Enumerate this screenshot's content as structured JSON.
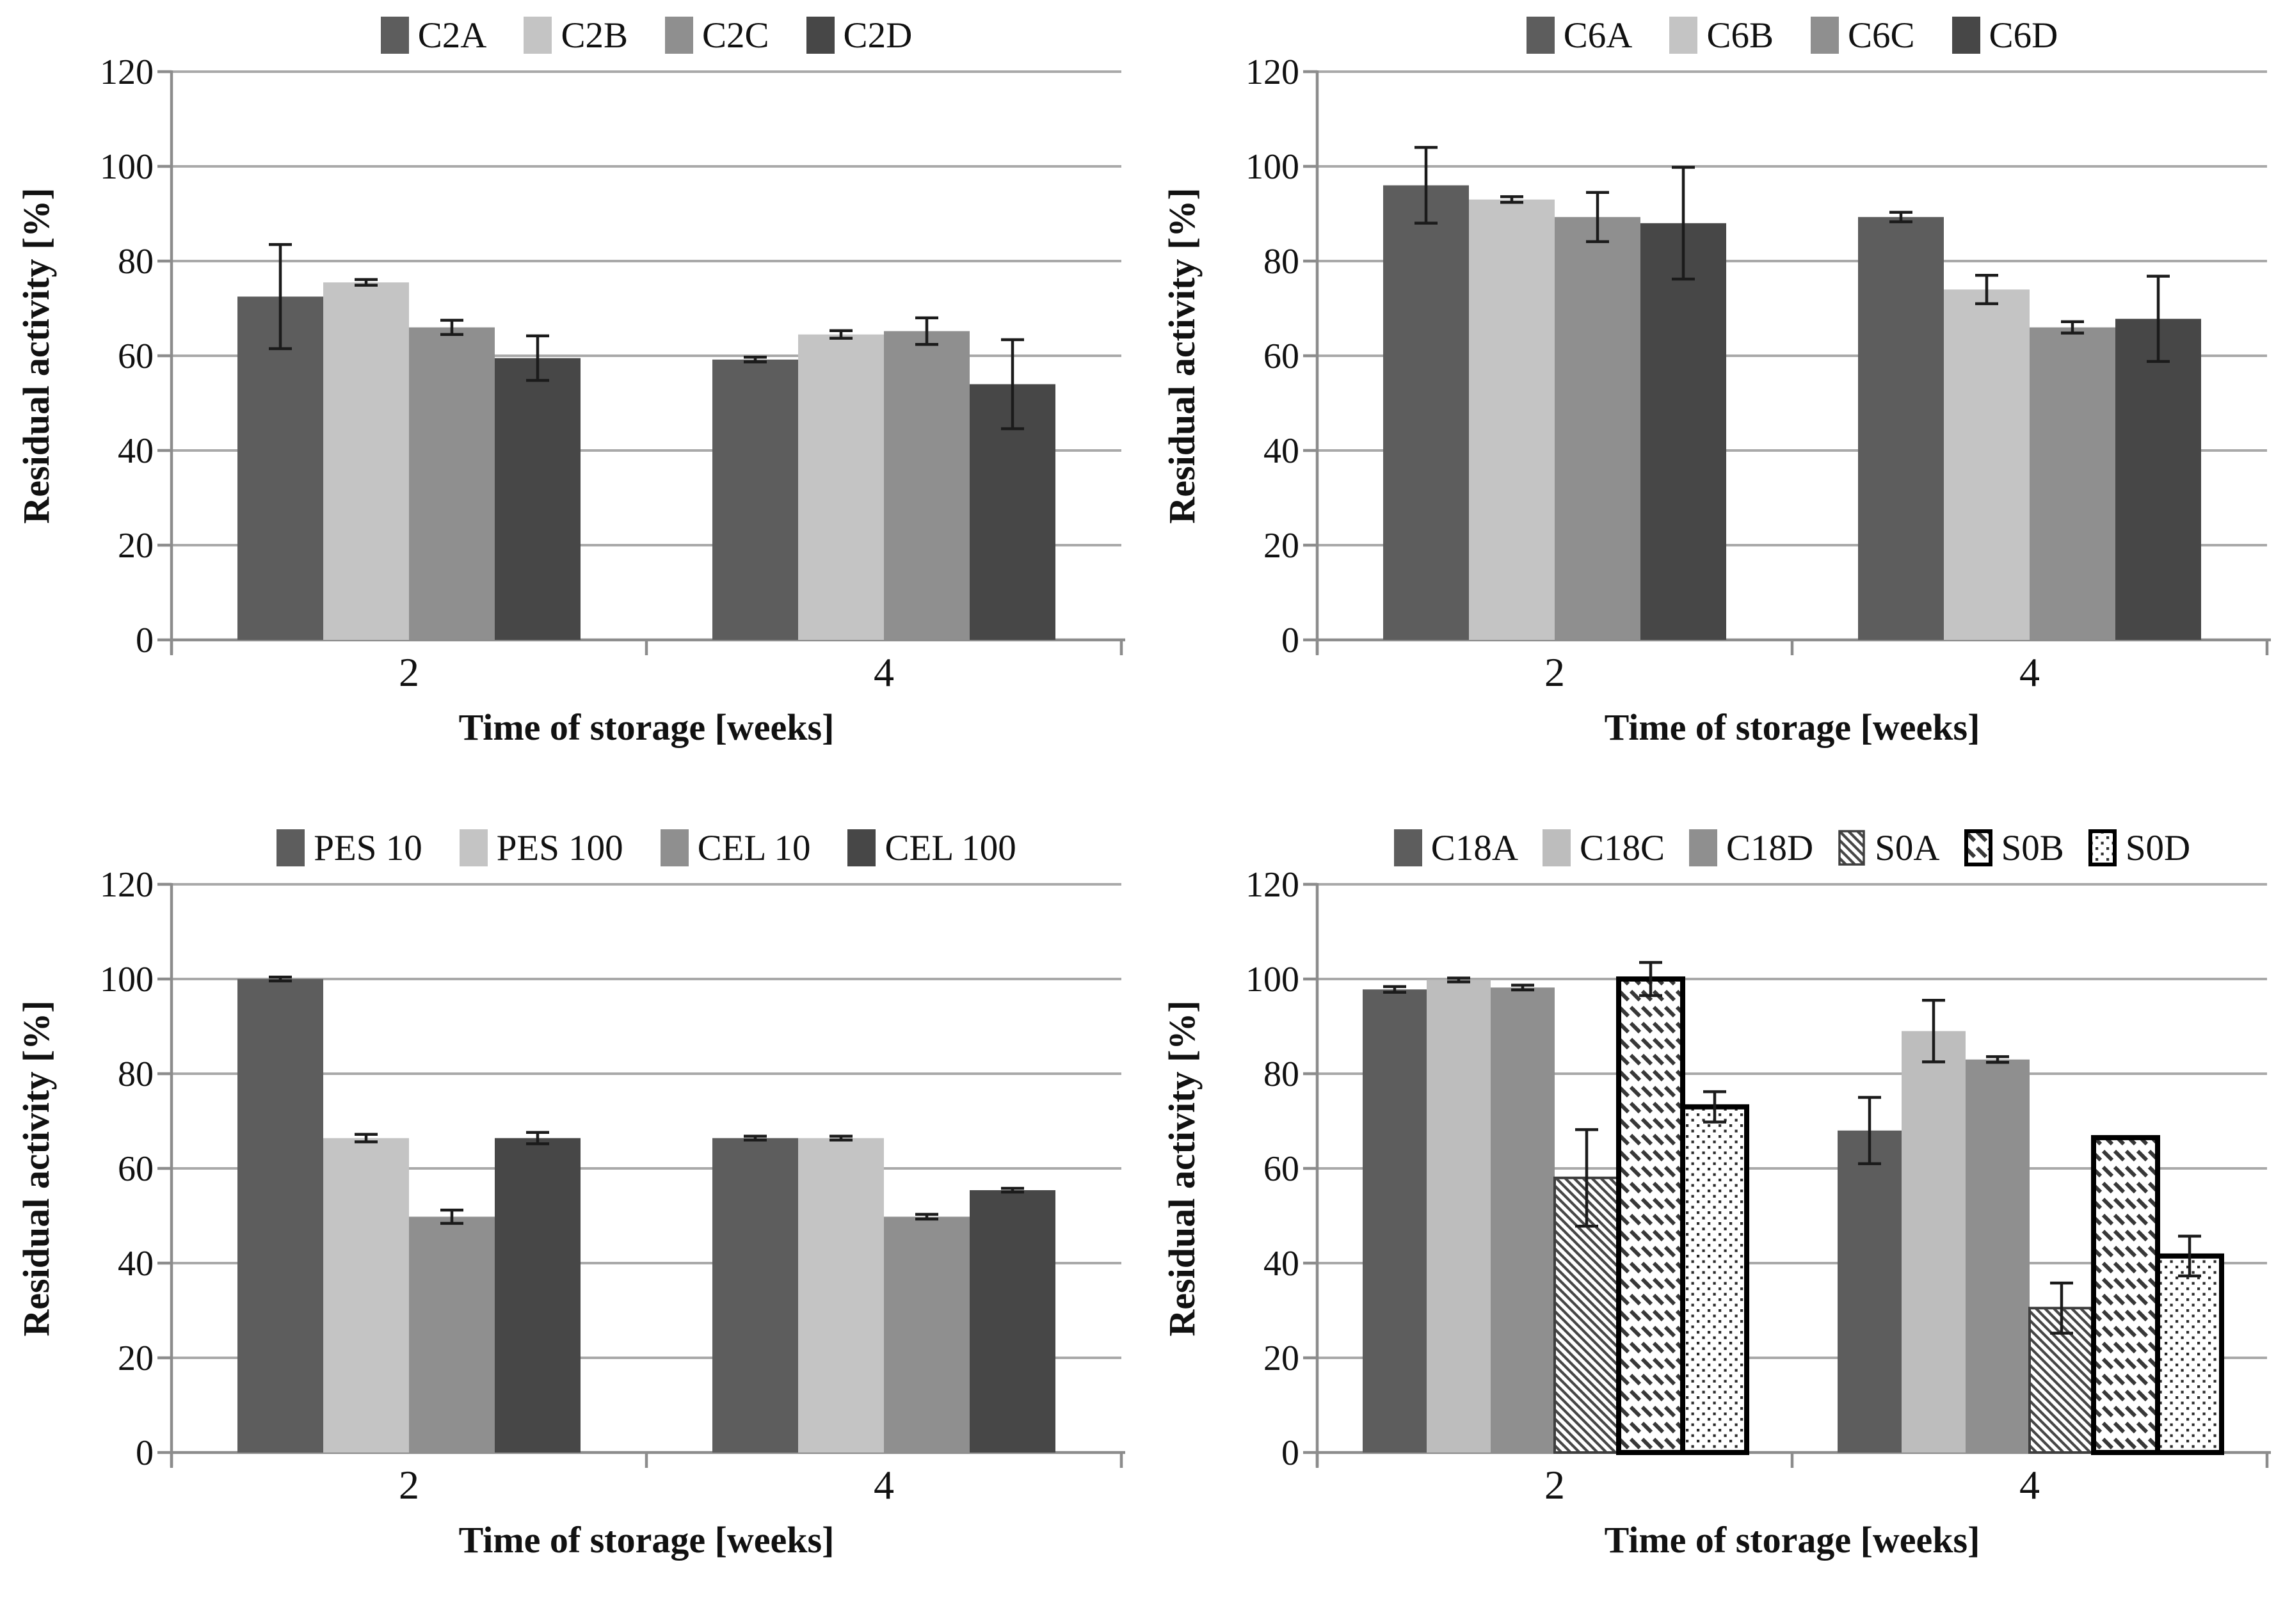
{
  "page": {
    "background": "#ffffff",
    "text_color": "#111111",
    "gridline_color": "#a9a9a9",
    "axis_color": "#8c8c8c",
    "error_bar_color": "#1b1b1b"
  },
  "shared_axes": {
    "ylabel": "Residual activity [%]",
    "xlabel": "Time of storage [weeks]",
    "categories": [
      "2",
      "4"
    ],
    "ylim": [
      0,
      120
    ],
    "ytick_step": 20,
    "yticks": [
      "0",
      "20",
      "40",
      "60",
      "80",
      "100",
      "120"
    ],
    "grid": "on",
    "legend_position": "top"
  },
  "chart_data": [
    {
      "type": "bar",
      "title": "",
      "position": "top-left",
      "categories": [
        "2",
        "4"
      ],
      "xlabel": "Time of storage [weeks]",
      "ylabel": "Residual activity [%]",
      "ylim": [
        0,
        120
      ],
      "ytick_step": 20,
      "series": [
        {
          "name": "C2A",
          "fill": "#5d5d5d",
          "pattern": null,
          "values": [
            72.5,
            59.2
          ],
          "errors": [
            11.0,
            0.5
          ]
        },
        {
          "name": "C2B",
          "fill": "#c4c4c4",
          "pattern": null,
          "values": [
            75.5,
            64.5
          ],
          "errors": [
            0.6,
            0.8
          ]
        },
        {
          "name": "C2C",
          "fill": "#8f8f8f",
          "pattern": null,
          "values": [
            66.0,
            65.2
          ],
          "errors": [
            1.5,
            2.8
          ]
        },
        {
          "name": "C2D",
          "fill": "#474747",
          "pattern": null,
          "values": [
            59.5,
            54.0
          ],
          "errors": [
            4.7,
            9.4
          ]
        }
      ]
    },
    {
      "type": "bar",
      "title": "",
      "position": "top-right",
      "categories": [
        "2",
        "4"
      ],
      "xlabel": "Time of storage [weeks]",
      "ylabel": "Residual activity [%]",
      "ylim": [
        0,
        120
      ],
      "ytick_step": 20,
      "series": [
        {
          "name": "C6A",
          "fill": "#5d5d5d",
          "pattern": null,
          "values": [
            96.0,
            89.3
          ],
          "errors": [
            8.0,
            1.0
          ]
        },
        {
          "name": "C6B",
          "fill": "#c4c4c4",
          "pattern": null,
          "values": [
            93.0,
            74.0
          ],
          "errors": [
            0.6,
            3.0
          ]
        },
        {
          "name": "C6C",
          "fill": "#8f8f8f",
          "pattern": null,
          "values": [
            89.3,
            66.0
          ],
          "errors": [
            5.2,
            1.2
          ]
        },
        {
          "name": "C6D",
          "fill": "#474747",
          "pattern": null,
          "values": [
            88.0,
            67.8
          ],
          "errors": [
            11.8,
            9.0
          ]
        }
      ]
    },
    {
      "type": "bar",
      "title": "",
      "position": "bottom-left",
      "categories": [
        "2",
        "4"
      ],
      "xlabel": "Time of storage [weeks]",
      "ylabel": "Residual activity [%]",
      "ylim": [
        0,
        120
      ],
      "ytick_step": 20,
      "series": [
        {
          "name": "PES 10",
          "fill": "#5d5d5d",
          "pattern": null,
          "values": [
            100.0,
            66.4
          ],
          "errors": [
            0.4,
            0.4
          ]
        },
        {
          "name": "PES 100",
          "fill": "#c4c4c4",
          "pattern": null,
          "values": [
            66.4,
            66.4
          ],
          "errors": [
            0.8,
            0.4
          ]
        },
        {
          "name": "CEL 10",
          "fill": "#8f8f8f",
          "pattern": null,
          "values": [
            49.8,
            49.8
          ],
          "errors": [
            1.4,
            0.5
          ]
        },
        {
          "name": "CEL 100",
          "fill": "#474747",
          "pattern": null,
          "values": [
            66.4,
            55.4
          ],
          "errors": [
            1.2,
            0.4
          ]
        }
      ]
    },
    {
      "type": "bar",
      "title": "",
      "position": "bottom-right",
      "categories": [
        "2",
        "4"
      ],
      "xlabel": "Time of storage [weeks]",
      "ylabel": "Residual activity [%]",
      "ylim": [
        0,
        120
      ],
      "ytick_step": 20,
      "series": [
        {
          "name": "C18A",
          "fill": "#5d5d5d",
          "pattern": null,
          "values": [
            97.8,
            68.0
          ],
          "errors": [
            0.6,
            7.0
          ]
        },
        {
          "name": "C18C",
          "fill": "#bdbdbd",
          "pattern": null,
          "values": [
            99.8,
            89.0
          ],
          "errors": [
            0.4,
            6.5
          ]
        },
        {
          "name": "C18D",
          "fill": "#8f8f8f",
          "pattern": null,
          "values": [
            98.2,
            83.0
          ],
          "errors": [
            0.5,
            0.6
          ]
        },
        {
          "name": "S0A",
          "fill": "#ffffff",
          "pattern": "diagonal-hatch",
          "border": "#3f3f3f",
          "border_width": 4,
          "values": [
            58.0,
            30.5
          ],
          "errors": [
            10.2,
            5.3
          ]
        },
        {
          "name": "S0B",
          "fill": "#ffffff",
          "pattern": "dash-rows",
          "border": "#000000",
          "border_width": 8,
          "values": [
            100.0,
            66.5
          ],
          "errors": [
            3.5,
            0
          ]
        },
        {
          "name": "S0D",
          "fill": "#ffffff",
          "pattern": "dots",
          "border": "#000000",
          "border_width": 8,
          "values": [
            73.0,
            41.5
          ],
          "errors": [
            3.2,
            4.2
          ]
        }
      ]
    }
  ]
}
